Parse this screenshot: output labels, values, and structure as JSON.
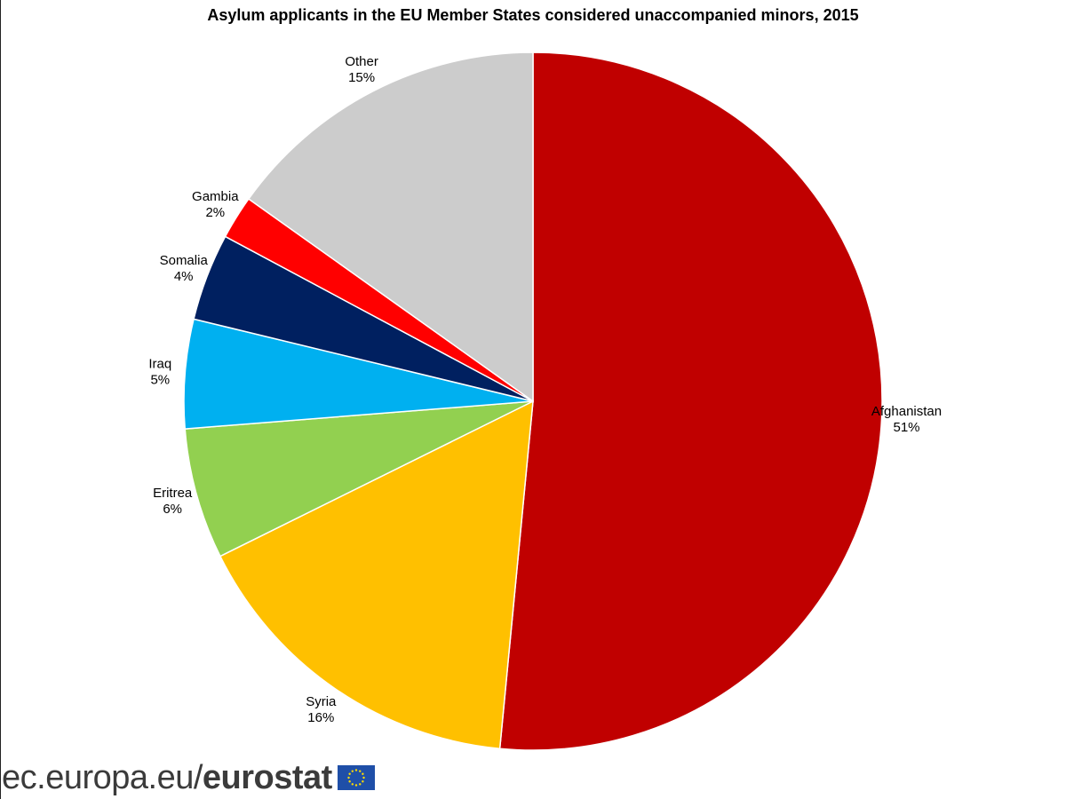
{
  "footer": {
    "domain": "ec.europa.eu/",
    "brand": "eurostat",
    "flag_icon": "eu-flag-icon"
  },
  "chart_data": {
    "type": "pie",
    "title": "Asylum applicants in the EU Member States considered unaccompanied minors, 2015",
    "start": "12 o'clock",
    "direction": "clockwise",
    "slices": [
      {
        "name": "Afghanistan",
        "value": 51,
        "label": "51%",
        "color": "#C00000"
      },
      {
        "name": "Syria",
        "value": 16,
        "label": "16%",
        "color": "#FFC000"
      },
      {
        "name": "Eritrea",
        "value": 6,
        "label": "6%",
        "color": "#92D050"
      },
      {
        "name": "Iraq",
        "value": 5,
        "label": "5%",
        "color": "#00B0F0"
      },
      {
        "name": "Somalia",
        "value": 4,
        "label": "4%",
        "color": "#002060"
      },
      {
        "name": "Gambia",
        "value": 2,
        "label": "2%",
        "color": "#FF0000"
      },
      {
        "name": "Other",
        "value": 15,
        "label": "15%",
        "color": "#CCCCCC"
      }
    ]
  }
}
